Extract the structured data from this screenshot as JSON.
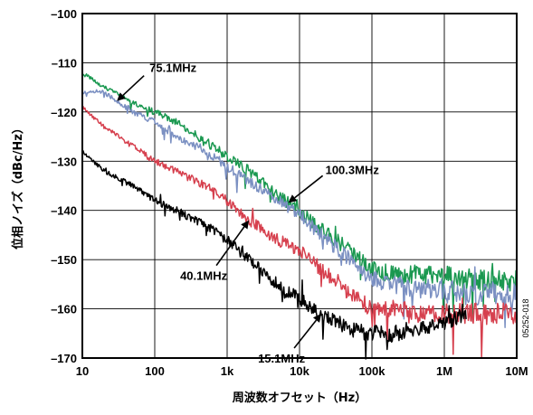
{
  "chart_data": {
    "type": "line",
    "xlabel": "周波数オフセット（Hz）",
    "ylabel": "位相ノイズ（dBc/Hz）",
    "figure_id": "05252-018",
    "xscale": "log",
    "xlim": [
      10,
      10000000
    ],
    "ylim": [
      -170,
      -100
    ],
    "grid": true,
    "x_ticks": [
      10,
      100,
      1000,
      10000,
      100000,
      1000000,
      10000000
    ],
    "x_tick_labels": [
      "10",
      "100",
      "1k",
      "10k",
      "100k",
      "1M",
      "10M"
    ],
    "y_ticks": [
      -100,
      -110,
      -120,
      -130,
      -140,
      -150,
      -160,
      -170
    ],
    "y_tick_labels": [
      "–100",
      "–110",
      "–120",
      "–130",
      "–140",
      "–150",
      "–160",
      "–170"
    ],
    "series": [
      {
        "name": "100.3MHz",
        "color": "#1a9850",
        "x": [
          10,
          20,
          50,
          100,
          200,
          500,
          1000,
          2000,
          5000,
          10000,
          20000,
          50000,
          100000,
          200000,
          500000,
          1000000,
          2000000,
          5000000,
          10000000
        ],
        "y": [
          -112,
          -115,
          -118,
          -120,
          -122,
          -126,
          -129,
          -132,
          -137,
          -140,
          -144,
          -148,
          -152,
          -153,
          -153,
          -153,
          -154,
          -154,
          -154
        ]
      },
      {
        "name": "75.1MHz",
        "color": "#7b90c2",
        "x": [
          10,
          20,
          50,
          100,
          200,
          500,
          1000,
          2000,
          5000,
          10000,
          20000,
          50000,
          100000,
          200000,
          500000,
          1000000,
          2000000,
          5000000,
          10000000
        ],
        "y": [
          -116,
          -116,
          -120,
          -122,
          -125,
          -128,
          -131,
          -134,
          -138,
          -141,
          -145,
          -150,
          -154,
          -155,
          -156,
          -156,
          -157,
          -157,
          -157
        ]
      },
      {
        "name": "40.1MHz",
        "color": "#d6404e",
        "x": [
          10,
          20,
          50,
          100,
          200,
          500,
          1000,
          2000,
          5000,
          10000,
          20000,
          50000,
          100000,
          200000,
          500000,
          1000000,
          2000000,
          5000000,
          10000000
        ],
        "y": [
          -119,
          -123,
          -127,
          -130,
          -132,
          -135,
          -138,
          -142,
          -146,
          -148,
          -152,
          -157,
          -160,
          -160,
          -161,
          -161,
          -161,
          -161,
          -161
        ]
      },
      {
        "name": "15.1MHz",
        "color": "#000000",
        "x": [
          10,
          20,
          50,
          100,
          200,
          500,
          1000,
          2000,
          5000,
          10000,
          20000,
          50000,
          100000,
          200000,
          500000,
          1000000,
          2000000
        ],
        "y": [
          -128,
          -132,
          -135,
          -138,
          -140,
          -143,
          -146,
          -150,
          -155,
          -158,
          -161,
          -164,
          -165,
          -165,
          -164,
          -163,
          -161
        ]
      }
    ],
    "annotations": [
      {
        "text": "75.1MHz",
        "series": "75.1MHz",
        "at_x": 30
      },
      {
        "text": "100.3MHz",
        "series": "100.3MHz",
        "at_x": 7000
      },
      {
        "text": "40.1MHz",
        "series": "40.1MHz",
        "at_x": 2000
      },
      {
        "text": "15.1MHz",
        "series": "15.1MHz",
        "at_x": 20000
      }
    ]
  }
}
